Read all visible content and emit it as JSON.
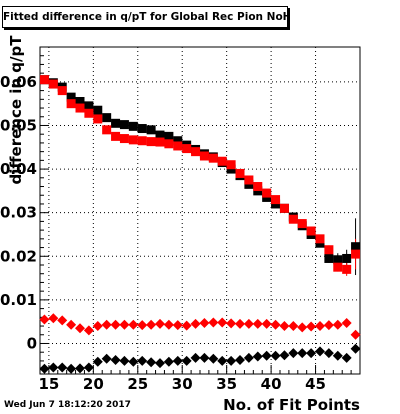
{
  "chart_data": {
    "type": "scatter",
    "title": "Fitted difference in q/pT for Global Rec Pion NoHits",
    "xlabel": "No. of Fit Points",
    "ylabel": "difference in q/pT",
    "timestamp": "Wed Jun  7 18:12:20 2017",
    "xlim": [
      14,
      50
    ],
    "ylim": [
      -0.007,
      0.068
    ],
    "xticks": [
      15,
      20,
      25,
      30,
      35,
      40,
      45
    ],
    "xtick_labels": [
      "15",
      "20",
      "25",
      "30",
      "35",
      "40",
      "45"
    ],
    "yticks": [
      0,
      0.01,
      0.02,
      0.03,
      0.04,
      0.05,
      0.06
    ],
    "ytick_labels": [
      "0",
      "0.01",
      "0.02",
      "0.03",
      "0.04",
      "0.05",
      "0.06"
    ],
    "grid": true,
    "colors": {
      "black": "#000000",
      "red": "#ff0000"
    },
    "series": [
      {
        "marker": "square",
        "color": "#000000",
        "x": [
          14.5,
          15.5,
          16.5,
          17.5,
          18.5,
          19.5,
          20.5,
          21.5,
          22.5,
          23.5,
          24.5,
          25.5,
          26.5,
          27.5,
          28.5,
          29.5,
          30.5,
          31.5,
          32.5,
          33.5,
          34.5,
          35.5,
          36.5,
          37.5,
          38.5,
          39.5,
          40.5,
          41.5,
          42.5,
          43.5,
          44.5,
          45.5,
          46.5,
          47.5,
          48.5,
          49.5
        ],
        "y": [
          0.0605,
          0.0598,
          0.0588,
          0.0565,
          0.0555,
          0.0545,
          0.0535,
          0.0518,
          0.0505,
          0.0502,
          0.0498,
          0.0493,
          0.049,
          0.0478,
          0.0475,
          0.0465,
          0.0455,
          0.0445,
          0.0435,
          0.0428,
          0.0415,
          0.04,
          0.0385,
          0.0365,
          0.035,
          0.0335,
          0.032,
          0.031,
          0.029,
          0.027,
          0.025,
          0.023,
          0.0195,
          0.0192,
          0.0195,
          0.0222
        ],
        "yerr": [
          0,
          0,
          0,
          0,
          0,
          0,
          0,
          0,
          0,
          0,
          0,
          0,
          0,
          0,
          0,
          0,
          0,
          0,
          0,
          0,
          0,
          0,
          0,
          0,
          0,
          0,
          0,
          0,
          0,
          0,
          0,
          0,
          0.001,
          0.0015,
          0.002,
          0.0065
        ]
      },
      {
        "marker": "square",
        "color": "#ff0000",
        "x": [
          14.5,
          15.5,
          16.5,
          17.5,
          18.5,
          19.5,
          20.5,
          21.5,
          22.5,
          23.5,
          24.5,
          25.5,
          26.5,
          27.5,
          28.5,
          29.5,
          30.5,
          31.5,
          32.5,
          33.5,
          34.5,
          35.5,
          36.5,
          37.5,
          38.5,
          39.5,
          40.5,
          41.5,
          42.5,
          43.5,
          44.5,
          45.5,
          46.5,
          47.5,
          48.5,
          49.5
        ],
        "y": [
          0.0605,
          0.0595,
          0.058,
          0.055,
          0.054,
          0.0528,
          0.0515,
          0.049,
          0.0475,
          0.047,
          0.0467,
          0.0465,
          0.0463,
          0.0462,
          0.0458,
          0.0453,
          0.0447,
          0.044,
          0.043,
          0.0425,
          0.0418,
          0.041,
          0.039,
          0.0375,
          0.036,
          0.0345,
          0.033,
          0.031,
          0.0285,
          0.0275,
          0.0258,
          0.024,
          0.0215,
          0.0175,
          0.017,
          0.0205
        ],
        "yerr": [
          0,
          0,
          0,
          0,
          0,
          0,
          0,
          0,
          0,
          0,
          0,
          0,
          0,
          0,
          0,
          0,
          0,
          0,
          0,
          0,
          0,
          0,
          0,
          0,
          0,
          0,
          0,
          0,
          0,
          0,
          0,
          0,
          0.001,
          0.001,
          0.0015,
          0.0035
        ]
      },
      {
        "marker": "diamond",
        "color": "#ff0000",
        "x": [
          14.5,
          15.5,
          16.5,
          17.5,
          18.5,
          19.5,
          20.5,
          21.5,
          22.5,
          23.5,
          24.5,
          25.5,
          26.5,
          27.5,
          28.5,
          29.5,
          30.5,
          31.5,
          32.5,
          33.5,
          34.5,
          35.5,
          36.5,
          37.5,
          38.5,
          39.5,
          40.5,
          41.5,
          42.5,
          43.5,
          44.5,
          45.5,
          46.5,
          47.5,
          48.5,
          49.5
        ],
        "y": [
          0.0055,
          0.0058,
          0.0053,
          0.0043,
          0.0035,
          0.003,
          0.004,
          0.0043,
          0.0043,
          0.0043,
          0.0043,
          0.0042,
          0.0043,
          0.0045,
          0.0043,
          0.0042,
          0.0041,
          0.0045,
          0.0047,
          0.0048,
          0.0048,
          0.0046,
          0.0045,
          0.0045,
          0.0045,
          0.0045,
          0.0043,
          0.004,
          0.004,
          0.0037,
          0.0039,
          0.004,
          0.0042,
          0.0043,
          0.0047,
          0.002
        ],
        "yerr": [
          0,
          0,
          0,
          0,
          0,
          0,
          0,
          0,
          0,
          0,
          0,
          0,
          0,
          0,
          0,
          0,
          0,
          0,
          0,
          0,
          0,
          0,
          0,
          0,
          0,
          0,
          0,
          0,
          0,
          0,
          0,
          0,
          0,
          0,
          0,
          0.0005
        ]
      },
      {
        "marker": "diamond",
        "color": "#000000",
        "x": [
          14.5,
          15.5,
          16.5,
          17.5,
          18.5,
          19.5,
          20.5,
          21.5,
          22.5,
          23.5,
          24.5,
          25.5,
          26.5,
          27.5,
          28.5,
          29.5,
          30.5,
          31.5,
          32.5,
          33.5,
          34.5,
          35.5,
          36.5,
          37.5,
          38.5,
          39.5,
          40.5,
          41.5,
          42.5,
          43.5,
          44.5,
          45.5,
          46.5,
          47.5,
          48.5,
          49.5
        ],
        "y": [
          -0.0058,
          -0.0055,
          -0.0055,
          -0.0058,
          -0.0057,
          -0.0055,
          -0.0042,
          -0.0035,
          -0.0038,
          -0.004,
          -0.0042,
          -0.004,
          -0.0043,
          -0.0045,
          -0.0042,
          -0.004,
          -0.004,
          -0.0033,
          -0.0033,
          -0.0035,
          -0.004,
          -0.004,
          -0.0038,
          -0.0033,
          -0.003,
          -0.0028,
          -0.0028,
          -0.0027,
          -0.0022,
          -0.0022,
          -0.0022,
          -0.0018,
          -0.0022,
          -0.0028,
          -0.0033,
          -0.0012
        ],
        "yerr": [
          0,
          0,
          0,
          0,
          0,
          0,
          0,
          0,
          0,
          0,
          0,
          0,
          0,
          0,
          0,
          0,
          0,
          0,
          0,
          0,
          0,
          0,
          0,
          0,
          0,
          0,
          0,
          0,
          0,
          0,
          0,
          0,
          0,
          0,
          0.0008,
          0.0008
        ]
      }
    ]
  }
}
